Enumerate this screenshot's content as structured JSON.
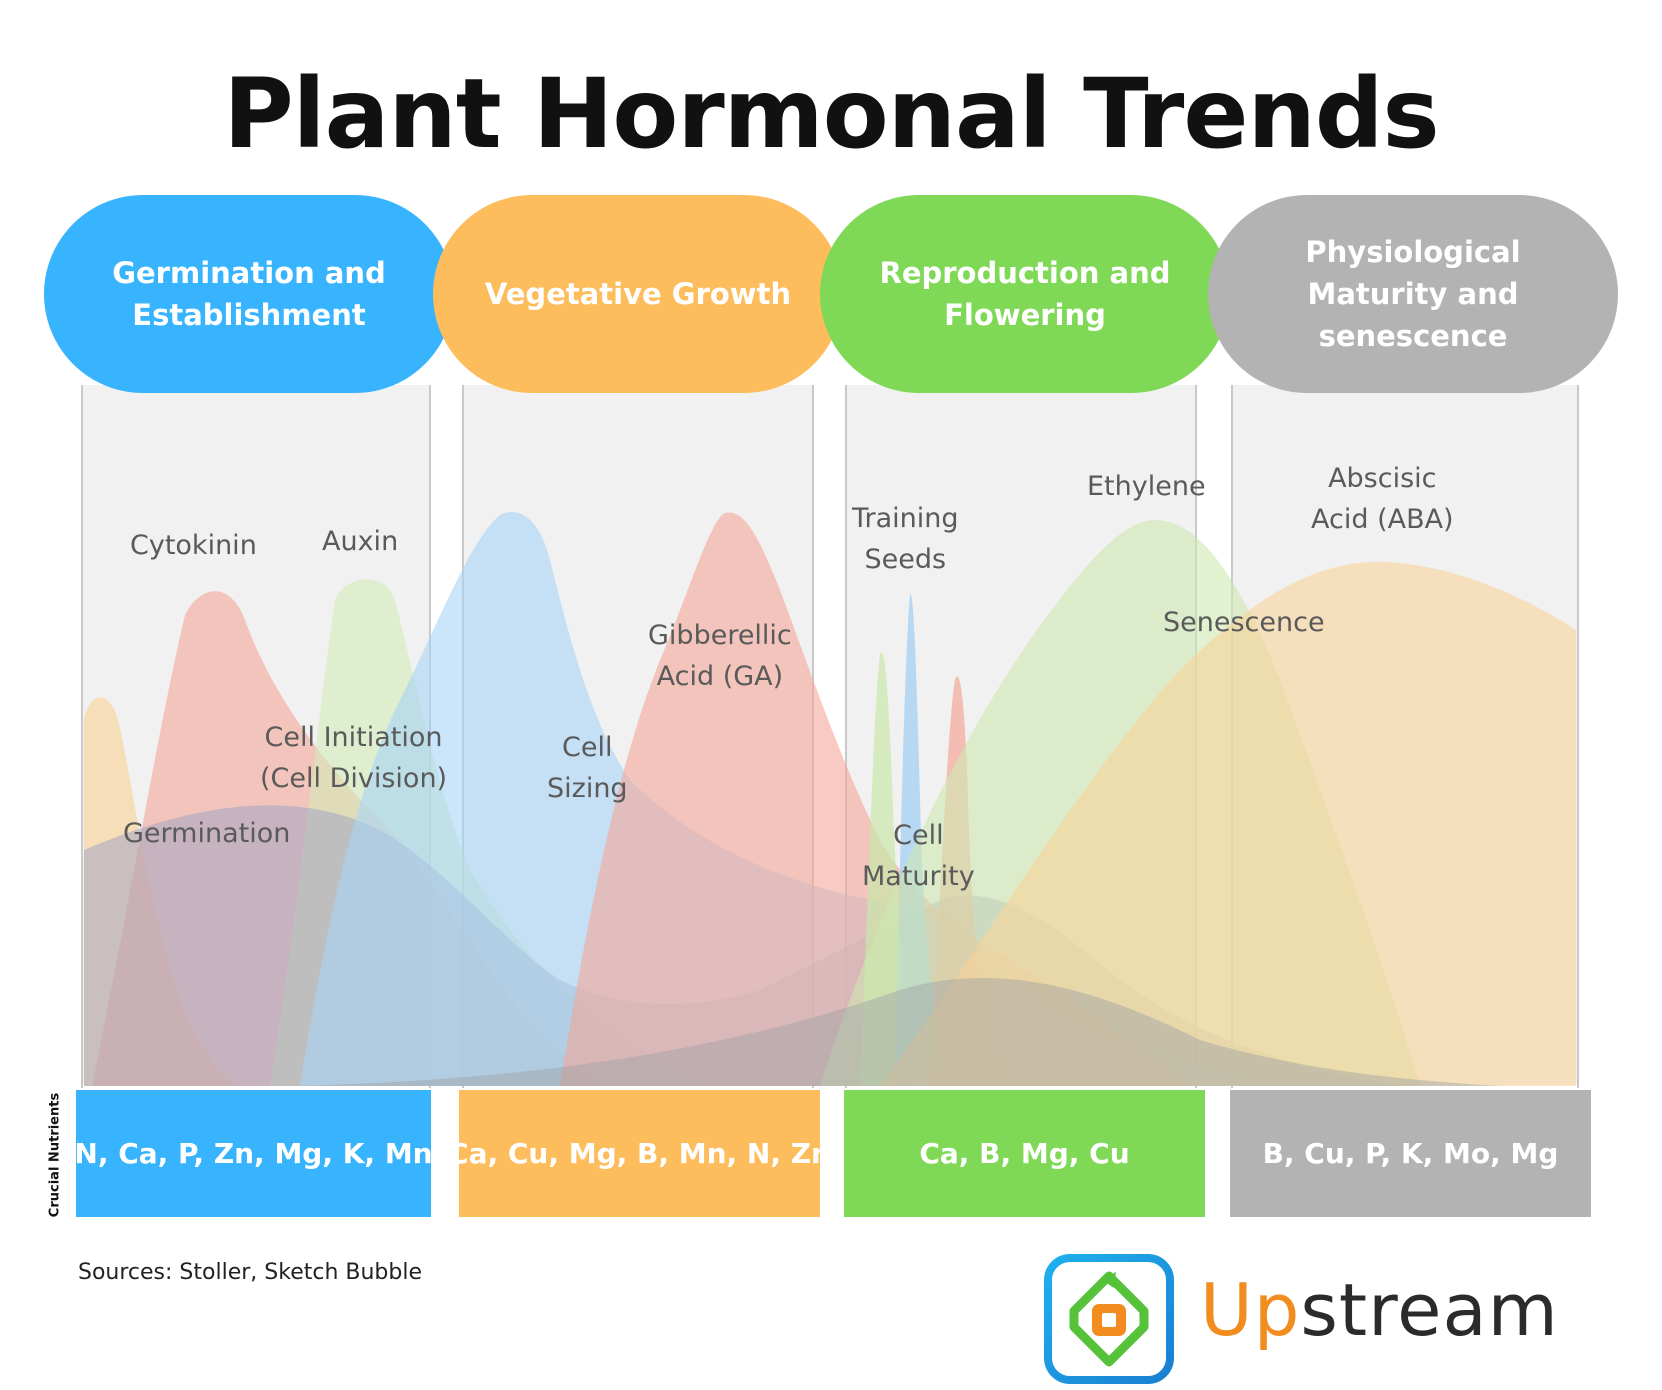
{
  "title": "Plant Hormonal Trends",
  "stages": [
    {
      "label": "Germination and Establishment",
      "color": "#38b4fe"
    },
    {
      "label": "Vegetative Growth",
      "color": "#fdbd5c"
    },
    {
      "label": "Reproduction and Flowering",
      "color": "#7fd957"
    },
    {
      "label": "Physiological Maturity and senescence",
      "color": "#b3b3b3"
    }
  ],
  "hormone_labels": {
    "cytokinin": "Cytokinin",
    "auxin": "Auxin",
    "germination": "Germination",
    "cell_initiation": "Cell Initiation",
    "cell_division": "(Cell Division)",
    "cell_sizing_1": "Cell",
    "cell_sizing_2": "Sizing",
    "gibberellic_1": "Gibberellic",
    "gibberellic_2": "Acid (GA)",
    "training_1": "Training",
    "training_2": "Seeds",
    "cell_maturity_1": "Cell",
    "cell_maturity_2": "Maturity",
    "ethylene": "Ethylene",
    "senescence": "Senescence",
    "abscisic_1": "Abscisic",
    "abscisic_2": "Acid (ABA)"
  },
  "nutrients_axis_label": "Crucial Nutrients",
  "nutrients": [
    {
      "text": "N, Ca, P, Zn, Mg, K, Mn",
      "color": "#38b4fe"
    },
    {
      "text": "Ca, Cu, Mg, B, Mn, N, Zn",
      "color": "#fdbd5c"
    },
    {
      "text": "Ca, B, Mg, Cu",
      "color": "#7fd957"
    },
    {
      "text": "B, Cu, P, K, Mo, Mg",
      "color": "#b3b3b3"
    }
  ],
  "sources": "Sources: Stoller, Sketch Bubble",
  "logo": {
    "part1": "Up",
    "part2": "stream",
    "icon": "upstream-logo-icon"
  }
}
